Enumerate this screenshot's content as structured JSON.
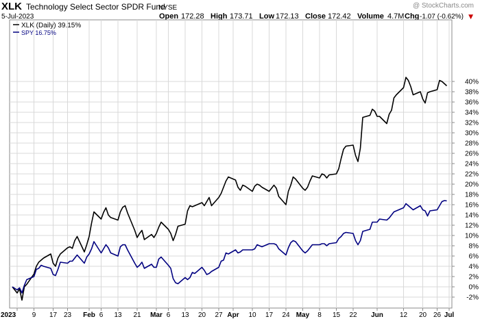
{
  "header": {
    "symbol": "XLK",
    "fund_name": "Technology Select Sector SPDR Fund",
    "exchange": "NYSE",
    "date": "5-Jul-2023",
    "watermark": "@ StockCharts.com",
    "quote": {
      "open_label": "Open",
      "open": "172.28",
      "high_label": "High",
      "high": "173.71",
      "low_label": "Low",
      "low": "172.13",
      "close_label": "Close",
      "close": "172.42",
      "volume_label": "Volume",
      "volume": "4.7M",
      "chg_label": "Chg",
      "chg": "-1.07 (-0.62%)",
      "chg_arrow": "▼"
    }
  },
  "colors": {
    "xlk": "#000000",
    "spy": "#000080",
    "grid": "#d8d8d8",
    "change_negative": "#cc0000"
  },
  "chart_data": {
    "type": "line",
    "title": "XLK Technology Select Sector SPDR Fund NYSE",
    "ylabel": "",
    "xlabel": "",
    "y_unit": "%",
    "ylim": [
      -3,
      41
    ],
    "y_ticks": [
      -2,
      0,
      2,
      4,
      6,
      8,
      10,
      12,
      14,
      16,
      18,
      20,
      22,
      24,
      26,
      28,
      30,
      32,
      34,
      36,
      38,
      40
    ],
    "y_tick_labels": [
      "-2%",
      "0%",
      "2%",
      "4%",
      "6%",
      "8%",
      "10%",
      "12%",
      "14%",
      "16%",
      "18%",
      "20%",
      "22%",
      "24%",
      "26%",
      "28%",
      "30%",
      "32%",
      "34%",
      "36%",
      "38%",
      "40%"
    ],
    "x_ticks": [
      {
        "label": "2023",
        "day": 2,
        "bold": true
      },
      {
        "label": "9",
        "day": 9,
        "bold": false
      },
      {
        "label": "17",
        "day": 17,
        "bold": false
      },
      {
        "label": "23",
        "day": 23,
        "bold": false
      },
      {
        "label": "Feb",
        "day": 32,
        "bold": true
      },
      {
        "label": "6",
        "day": 37,
        "bold": false
      },
      {
        "label": "13",
        "day": 44,
        "bold": false
      },
      {
        "label": "21",
        "day": 52,
        "bold": false
      },
      {
        "label": "Mar",
        "day": 60,
        "bold": true
      },
      {
        "label": "6",
        "day": 65,
        "bold": false
      },
      {
        "label": "13",
        "day": 72,
        "bold": false
      },
      {
        "label": "20",
        "day": 79,
        "bold": false
      },
      {
        "label": "27",
        "day": 86,
        "bold": false
      },
      {
        "label": "Apr",
        "day": 92,
        "bold": true
      },
      {
        "label": "10",
        "day": 100,
        "bold": false
      },
      {
        "label": "17",
        "day": 107,
        "bold": false
      },
      {
        "label": "24",
        "day": 114,
        "bold": false
      },
      {
        "label": "May",
        "day": 121,
        "bold": true
      },
      {
        "label": "8",
        "day": 128,
        "bold": false
      },
      {
        "label": "15",
        "day": 135,
        "bold": false
      },
      {
        "label": "22",
        "day": 142,
        "bold": false
      },
      {
        "label": "Jun",
        "day": 152,
        "bold": true
      },
      {
        "label": "12",
        "day": 163,
        "bold": false
      },
      {
        "label": "20",
        "day": 171,
        "bold": false
      },
      {
        "label": "26",
        "day": 177,
        "bold": false
      },
      {
        "label": "Jul",
        "day": 182,
        "bold": true
      }
    ],
    "x_range_days": [
      0,
      186
    ],
    "legend": [
      {
        "label": "XLK (Daily) 39.15%",
        "series": "xlk"
      },
      {
        "label": "SPY 16.75%",
        "series": "spy"
      }
    ],
    "legend_position": "top-left",
    "grid": true,
    "series": [
      {
        "name": "XLK (Daily) 39.15%",
        "key": "xlk",
        "points": [
          [
            0,
            0.0
          ],
          [
            2,
            -1.2
          ],
          [
            3,
            -0.4
          ],
          [
            4,
            -2.6
          ],
          [
            5,
            0.0
          ],
          [
            6,
            0.5
          ],
          [
            9,
            2.5
          ],
          [
            10,
            4.0
          ],
          [
            11,
            4.8
          ],
          [
            12,
            5.2
          ],
          [
            13,
            5.6
          ],
          [
            16,
            6.4
          ],
          [
            17,
            4.6
          ],
          [
            18,
            4.0
          ],
          [
            19,
            5.6
          ],
          [
            20,
            6.4
          ],
          [
            23,
            7.6
          ],
          [
            24,
            7.8
          ],
          [
            25,
            7.5
          ],
          [
            26,
            9.0
          ],
          [
            27,
            9.8
          ],
          [
            30,
            6.8
          ],
          [
            31,
            8.2
          ],
          [
            32,
            9.8
          ],
          [
            33,
            12.4
          ],
          [
            34,
            14.6
          ],
          [
            37,
            13.2
          ],
          [
            38,
            14.5
          ],
          [
            39,
            15.4
          ],
          [
            40,
            14.0
          ],
          [
            41,
            13.5
          ],
          [
            44,
            13.0
          ],
          [
            45,
            14.6
          ],
          [
            46,
            15.5
          ],
          [
            47,
            15.8
          ],
          [
            48,
            14.4
          ],
          [
            51,
            11.0
          ],
          [
            52,
            9.6
          ],
          [
            53,
            10.4
          ],
          [
            54,
            11.0
          ],
          [
            55,
            9.2
          ],
          [
            58,
            10.2
          ],
          [
            59,
            9.6
          ],
          [
            60,
            10.4
          ],
          [
            61,
            11.6
          ],
          [
            62,
            12.6
          ],
          [
            65,
            11.2
          ],
          [
            66,
            10.4
          ],
          [
            67,
            9.0
          ],
          [
            68,
            10.2
          ],
          [
            69,
            11.8
          ],
          [
            72,
            12.2
          ],
          [
            73,
            14.8
          ],
          [
            74,
            15.8
          ],
          [
            75,
            15.6
          ],
          [
            76,
            15.8
          ],
          [
            79,
            16.4
          ],
          [
            80,
            15.8
          ],
          [
            81,
            16.6
          ],
          [
            82,
            17.4
          ],
          [
            83,
            15.8
          ],
          [
            86,
            17.4
          ],
          [
            87,
            18.2
          ],
          [
            88,
            19.4
          ],
          [
            89,
            20.6
          ],
          [
            90,
            21.4
          ],
          [
            93,
            20.8
          ],
          [
            94,
            19.4
          ],
          [
            95,
            18.8
          ],
          [
            96,
            19.8
          ],
          [
            97,
            19.6
          ],
          [
            100,
            18.6
          ],
          [
            101,
            19.6
          ],
          [
            102,
            20.0
          ],
          [
            103,
            19.8
          ],
          [
            104,
            19.4
          ],
          [
            107,
            18.6
          ],
          [
            108,
            19.2
          ],
          [
            109,
            19.8
          ],
          [
            110,
            19.2
          ],
          [
            111,
            17.6
          ],
          [
            114,
            16.0
          ],
          [
            115,
            18.6
          ],
          [
            116,
            19.8
          ],
          [
            117,
            21.4
          ],
          [
            118,
            21.0
          ],
          [
            121,
            19.2
          ],
          [
            122,
            18.8
          ],
          [
            123,
            19.4
          ],
          [
            124,
            20.6
          ],
          [
            125,
            21.6
          ],
          [
            128,
            21.2
          ],
          [
            129,
            22.0
          ],
          [
            130,
            21.8
          ],
          [
            131,
            21.2
          ],
          [
            132,
            21.8
          ],
          [
            135,
            22.0
          ],
          [
            136,
            23.0
          ],
          [
            137,
            25.0
          ],
          [
            138,
            26.8
          ],
          [
            139,
            27.4
          ],
          [
            142,
            27.6
          ],
          [
            143,
            25.6
          ],
          [
            144,
            24.4
          ],
          [
            145,
            27.0
          ],
          [
            146,
            33.0
          ],
          [
            149,
            33.4
          ],
          [
            150,
            34.6
          ],
          [
            151,
            34.2
          ],
          [
            152,
            33.2
          ],
          [
            153,
            33.2
          ],
          [
            156,
            31.8
          ],
          [
            157,
            33.6
          ],
          [
            158,
            34.4
          ],
          [
            159,
            36.8
          ],
          [
            160,
            37.4
          ],
          [
            163,
            38.8
          ],
          [
            164,
            40.8
          ],
          [
            165,
            40.2
          ],
          [
            166,
            39.0
          ],
          [
            167,
            37.4
          ],
          [
            170,
            38.0
          ],
          [
            171,
            36.6
          ],
          [
            172,
            35.8
          ],
          [
            173,
            37.8
          ],
          [
            174,
            38.0
          ],
          [
            177,
            38.4
          ],
          [
            178,
            40.2
          ],
          [
            179,
            40.0
          ],
          [
            181,
            39.15
          ]
        ]
      },
      {
        "name": "SPY 16.75%",
        "key": "spy",
        "points": [
          [
            0,
            0.0
          ],
          [
            2,
            -0.6
          ],
          [
            3,
            -0.2
          ],
          [
            4,
            -1.2
          ],
          [
            5,
            0.3
          ],
          [
            6,
            1.4
          ],
          [
            9,
            2.0
          ],
          [
            10,
            3.4
          ],
          [
            11,
            3.6
          ],
          [
            12,
            4.2
          ],
          [
            13,
            4.0
          ],
          [
            16,
            3.6
          ],
          [
            17,
            2.4
          ],
          [
            18,
            2.2
          ],
          [
            19,
            3.4
          ],
          [
            20,
            4.8
          ],
          [
            23,
            4.6
          ],
          [
            24,
            5.0
          ],
          [
            25,
            5.0
          ],
          [
            26,
            5.6
          ],
          [
            27,
            6.2
          ],
          [
            30,
            4.6
          ],
          [
            31,
            5.8
          ],
          [
            32,
            6.4
          ],
          [
            33,
            7.4
          ],
          [
            34,
            8.8
          ],
          [
            37,
            6.6
          ],
          [
            38,
            7.4
          ],
          [
            39,
            8.2
          ],
          [
            40,
            7.6
          ],
          [
            41,
            6.6
          ],
          [
            44,
            6.0
          ],
          [
            45,
            7.8
          ],
          [
            46,
            8.2
          ],
          [
            47,
            8.2
          ],
          [
            48,
            7.2
          ],
          [
            51,
            4.6
          ],
          [
            52,
            3.8
          ],
          [
            53,
            4.2
          ],
          [
            54,
            4.8
          ],
          [
            55,
            3.6
          ],
          [
            58,
            4.4
          ],
          [
            59,
            3.8
          ],
          [
            60,
            3.8
          ],
          [
            61,
            5.4
          ],
          [
            62,
            5.8
          ],
          [
            65,
            4.2
          ],
          [
            66,
            3.6
          ],
          [
            67,
            1.6
          ],
          [
            68,
            0.8
          ],
          [
            69,
            0.6
          ],
          [
            72,
            1.8
          ],
          [
            73,
            1.4
          ],
          [
            74,
            1.8
          ],
          [
            75,
            2.8
          ],
          [
            76,
            2.6
          ],
          [
            79,
            3.8
          ],
          [
            80,
            3.2
          ],
          [
            81,
            2.4
          ],
          [
            82,
            2.6
          ],
          [
            83,
            3.0
          ],
          [
            86,
            3.8
          ],
          [
            87,
            5.0
          ],
          [
            88,
            5.2
          ],
          [
            89,
            6.6
          ],
          [
            90,
            6.4
          ],
          [
            93,
            7.2
          ],
          [
            94,
            6.6
          ],
          [
            95,
            6.8
          ],
          [
            96,
            7.2
          ],
          [
            97,
            7.2
          ],
          [
            100,
            7.2
          ],
          [
            101,
            7.4
          ],
          [
            102,
            8.2
          ],
          [
            103,
            8.0
          ],
          [
            104,
            7.8
          ],
          [
            107,
            8.4
          ],
          [
            108,
            8.4
          ],
          [
            109,
            8.4
          ],
          [
            110,
            8.2
          ],
          [
            111,
            7.4
          ],
          [
            114,
            6.2
          ],
          [
            115,
            7.6
          ],
          [
            116,
            8.6
          ],
          [
            117,
            9.0
          ],
          [
            118,
            8.8
          ],
          [
            121,
            7.0
          ],
          [
            122,
            6.6
          ],
          [
            123,
            7.0
          ],
          [
            124,
            7.6
          ],
          [
            125,
            8.2
          ],
          [
            128,
            8.2
          ],
          [
            129,
            8.4
          ],
          [
            130,
            8.4
          ],
          [
            131,
            8.0
          ],
          [
            132,
            8.4
          ],
          [
            135,
            8.6
          ],
          [
            136,
            9.4
          ],
          [
            137,
            9.8
          ],
          [
            138,
            10.4
          ],
          [
            139,
            10.6
          ],
          [
            142,
            10.4
          ],
          [
            143,
            9.0
          ],
          [
            144,
            8.2
          ],
          [
            145,
            9.0
          ],
          [
            146,
            10.8
          ],
          [
            149,
            11.2
          ],
          [
            150,
            12.6
          ],
          [
            151,
            12.6
          ],
          [
            152,
            12.6
          ],
          [
            153,
            13.2
          ],
          [
            156,
            13.0
          ],
          [
            157,
            13.4
          ],
          [
            158,
            14.0
          ],
          [
            159,
            14.6
          ],
          [
            160,
            14.8
          ],
          [
            163,
            15.4
          ],
          [
            164,
            16.2
          ],
          [
            165,
            15.8
          ],
          [
            166,
            15.4
          ],
          [
            167,
            15.0
          ],
          [
            170,
            15.8
          ],
          [
            171,
            15.0
          ],
          [
            172,
            14.8
          ],
          [
            173,
            13.8
          ],
          [
            174,
            14.8
          ],
          [
            177,
            15.0
          ],
          [
            178,
            15.8
          ],
          [
            179,
            16.6
          ],
          [
            180,
            16.8
          ],
          [
            181,
            16.75
          ]
        ]
      }
    ]
  }
}
